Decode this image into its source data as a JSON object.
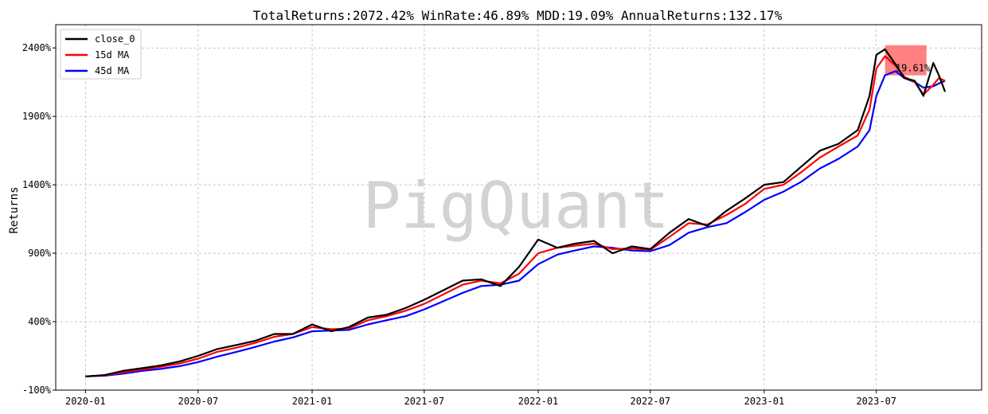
{
  "chart_data": {
    "type": "line",
    "title": "TotalReturns:2072.42%  WinRate:46.89%  MDD:19.09%  AnnualReturns:132.17%",
    "xlabel": "",
    "ylabel": "Returns",
    "watermark": "PigQuant",
    "x_tick_labels": [
      "2020-01",
      "2020-07",
      "2021-01",
      "2021-07",
      "2022-01",
      "2022-07",
      "2023-01",
      "2023-07"
    ],
    "x_tick_values": [
      "2020-01-01",
      "2020-07-01",
      "2021-01-01",
      "2021-07-01",
      "2022-01-01",
      "2022-07-01",
      "2023-01-01",
      "2023-07-01"
    ],
    "y_tick_labels": [
      "-100%",
      "400%",
      "900%",
      "1400%",
      "1900%",
      "2400%"
    ],
    "y_tick_values": [
      -100,
      400,
      900,
      1400,
      1900,
      2400
    ],
    "xlim": [
      "2019-11-14",
      "2023-12-18"
    ],
    "ylim": [
      -100,
      2570
    ],
    "grid": true,
    "legend_position": "top-left",
    "colors": {
      "close_0": "#000000",
      "ma15": "#ff0000",
      "ma45": "#0000ff",
      "drawdown": "#ff6b6b",
      "grid": "#b0b0b0",
      "watermark": "#d3d3d3"
    },
    "series": [
      {
        "name": "close_0",
        "x": [
          "2020-01-01",
          "2020-02-01",
          "2020-03-01",
          "2020-04-01",
          "2020-05-01",
          "2020-06-01",
          "2020-07-01",
          "2020-08-01",
          "2020-09-01",
          "2020-10-01",
          "2020-11-01",
          "2020-12-01",
          "2021-01-01",
          "2021-02-01",
          "2021-03-01",
          "2021-04-01",
          "2021-05-01",
          "2021-06-01",
          "2021-07-01",
          "2021-08-01",
          "2021-09-01",
          "2021-10-01",
          "2021-11-01",
          "2021-12-01",
          "2022-01-01",
          "2022-02-01",
          "2022-03-01",
          "2022-04-01",
          "2022-05-01",
          "2022-06-01",
          "2022-07-01",
          "2022-08-01",
          "2022-09-01",
          "2022-10-01",
          "2022-11-01",
          "2022-12-01",
          "2023-01-01",
          "2023-02-01",
          "2023-03-01",
          "2023-04-01",
          "2023-05-01",
          "2023-06-01",
          "2023-06-20",
          "2023-07-01",
          "2023-07-15",
          "2023-08-01",
          "2023-08-15",
          "2023-09-01",
          "2023-09-15",
          "2023-10-01",
          "2023-10-10",
          "2023-10-20"
        ],
        "y": [
          0,
          10,
          40,
          60,
          80,
          110,
          150,
          200,
          230,
          260,
          310,
          310,
          380,
          330,
          360,
          430,
          450,
          500,
          560,
          630,
          700,
          710,
          660,
          800,
          1000,
          940,
          970,
          990,
          900,
          950,
          930,
          1050,
          1150,
          1100,
          1210,
          1300,
          1400,
          1420,
          1530,
          1650,
          1700,
          1800,
          2050,
          2350,
          2390,
          2280,
          2180,
          2160,
          2050,
          2290,
          2200,
          2080
        ]
      },
      {
        "name": "15d MA",
        "x": [
          "2020-01-01",
          "2020-02-01",
          "2020-03-01",
          "2020-04-01",
          "2020-05-01",
          "2020-06-01",
          "2020-07-01",
          "2020-08-01",
          "2020-09-01",
          "2020-10-01",
          "2020-11-01",
          "2020-12-01",
          "2021-01-01",
          "2021-02-01",
          "2021-03-01",
          "2021-04-01",
          "2021-05-01",
          "2021-06-01",
          "2021-07-01",
          "2021-08-01",
          "2021-09-01",
          "2021-10-01",
          "2021-11-01",
          "2021-12-01",
          "2022-01-01",
          "2022-02-01",
          "2022-03-01",
          "2022-04-01",
          "2022-05-01",
          "2022-06-01",
          "2022-07-01",
          "2022-08-01",
          "2022-09-01",
          "2022-10-01",
          "2022-11-01",
          "2022-12-01",
          "2023-01-01",
          "2023-02-01",
          "2023-03-01",
          "2023-04-01",
          "2023-05-01",
          "2023-06-01",
          "2023-06-20",
          "2023-07-01",
          "2023-07-15",
          "2023-08-01",
          "2023-08-15",
          "2023-09-01",
          "2023-09-15",
          "2023-10-01",
          "2023-10-10",
          "2023-10-20"
        ],
        "y": [
          0,
          8,
          30,
          50,
          70,
          95,
          130,
          180,
          210,
          245,
          290,
          310,
          360,
          345,
          350,
          410,
          440,
          480,
          530,
          600,
          670,
          700,
          680,
          750,
          900,
          940,
          955,
          970,
          930,
          935,
          925,
          1020,
          1120,
          1110,
          1180,
          1260,
          1370,
          1400,
          1490,
          1600,
          1680,
          1760,
          1950,
          2250,
          2340,
          2270,
          2190,
          2150,
          2060,
          2130,
          2180,
          2160
        ]
      },
      {
        "name": "45d MA",
        "x": [
          "2020-01-01",
          "2020-02-01",
          "2020-03-01",
          "2020-04-01",
          "2020-05-01",
          "2020-06-01",
          "2020-07-01",
          "2020-08-01",
          "2020-09-01",
          "2020-10-01",
          "2020-11-01",
          "2020-12-01",
          "2021-01-01",
          "2021-02-01",
          "2021-03-01",
          "2021-04-01",
          "2021-05-01",
          "2021-06-01",
          "2021-07-01",
          "2021-08-01",
          "2021-09-01",
          "2021-10-01",
          "2021-11-01",
          "2021-12-01",
          "2022-01-01",
          "2022-02-01",
          "2022-03-01",
          "2022-04-01",
          "2022-05-01",
          "2022-06-01",
          "2022-07-01",
          "2022-08-01",
          "2022-09-01",
          "2022-10-01",
          "2022-11-01",
          "2022-12-01",
          "2023-01-01",
          "2023-02-01",
          "2023-03-01",
          "2023-04-01",
          "2023-05-01",
          "2023-06-01",
          "2023-06-20",
          "2023-07-01",
          "2023-07-15",
          "2023-08-01",
          "2023-08-15",
          "2023-09-01",
          "2023-09-15",
          "2023-10-01",
          "2023-10-10",
          "2023-10-20"
        ],
        "y": [
          0,
          5,
          20,
          40,
          55,
          75,
          105,
          145,
          180,
          215,
          255,
          285,
          330,
          335,
          340,
          380,
          410,
          440,
          490,
          550,
          610,
          660,
          670,
          700,
          820,
          890,
          920,
          950,
          940,
          920,
          915,
          960,
          1050,
          1090,
          1120,
          1200,
          1290,
          1350,
          1420,
          1520,
          1590,
          1680,
          1800,
          2050,
          2200,
          2230,
          2180,
          2150,
          2110,
          2120,
          2140,
          2160
        ]
      }
    ],
    "drawdown": {
      "start": "2023-07-15",
      "end": "2023-09-20",
      "top": 2420,
      "bottom": 2200,
      "label": "19.61%",
      "label_x": "2023-08-01",
      "label_y": 2230
    }
  }
}
